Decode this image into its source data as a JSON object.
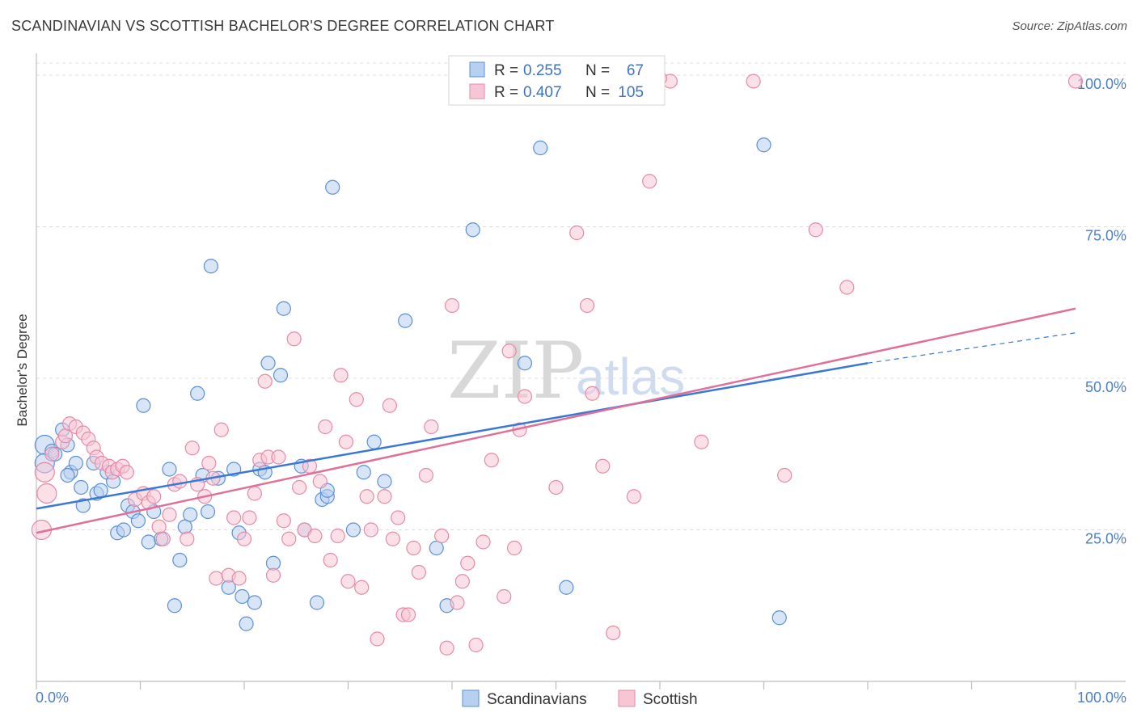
{
  "title": "SCANDINAVIAN VS SCOTTISH BACHELOR'S DEGREE CORRELATION CHART",
  "source": "Source: ZipAtlas.com",
  "watermark": {
    "zip": "ZIP",
    "atlas": "atlas"
  },
  "colors": {
    "blue_fill": "#b8d0f0",
    "blue_stroke": "#5a8fd6",
    "blue_line": "#3a78d4",
    "pink_fill": "#f7c6d5",
    "pink_stroke": "#e48aa6",
    "pink_line": "#e0709a"
  },
  "legend": {
    "r_label": "R =",
    "n_label": "N =",
    "rows": [
      {
        "r": "0.255",
        "n": "67"
      },
      {
        "r": "0.407",
        "n": "105"
      }
    ]
  },
  "chart_data": {
    "type": "scatter",
    "title": "SCANDINAVIAN VS SCOTTISH BACHELOR'S DEGREE CORRELATION CHART",
    "xlabel": "",
    "ylabel": "Bachelor's Degree",
    "xlim": [
      0,
      100
    ],
    "ylim": [
      0,
      102
    ],
    "x_tick_labels": [
      "0.0%",
      "100.0%"
    ],
    "y_ticks": [
      25,
      50,
      75,
      100
    ],
    "y_tick_labels": [
      "25.0%",
      "50.0%",
      "75.0%",
      "100.0%"
    ],
    "grid": true,
    "legend_position": "top-center",
    "series": [
      {
        "name": "Scandinavians",
        "trend": {
          "x0": 0,
          "y0": 28.5,
          "x1": 80,
          "y1": 52.5,
          "dashed_to_x": 100,
          "dashed_to_y": 57.5
        },
        "points": [
          [
            0.8,
            39
          ],
          [
            0.8,
            36
          ],
          [
            1.5,
            38
          ],
          [
            1.8,
            37.5
          ],
          [
            2.5,
            41.5
          ],
          [
            3,
            39
          ],
          [
            3.3,
            34.5
          ],
          [
            3.8,
            36
          ],
          [
            4.3,
            32
          ],
          [
            4.5,
            29
          ],
          [
            5.5,
            36
          ],
          [
            5.8,
            31
          ],
          [
            6.2,
            31.5
          ],
          [
            6.8,
            34.5
          ],
          [
            7.4,
            33
          ],
          [
            7.8,
            24.5
          ],
          [
            8.4,
            25
          ],
          [
            8.8,
            29
          ],
          [
            9.3,
            28
          ],
          [
            9.8,
            26.5
          ],
          [
            10.3,
            45.5
          ],
          [
            10.8,
            23
          ],
          [
            11.3,
            28
          ],
          [
            12,
            23.5
          ],
          [
            12.8,
            35
          ],
          [
            13.3,
            12.5
          ],
          [
            13.8,
            20
          ],
          [
            14.3,
            25.5
          ],
          [
            14.8,
            27.5
          ],
          [
            15.5,
            47.5
          ],
          [
            16,
            34
          ],
          [
            16.5,
            28
          ],
          [
            16.8,
            68.5
          ],
          [
            17.5,
            33.5
          ],
          [
            18.5,
            15.5
          ],
          [
            19,
            35
          ],
          [
            19.5,
            24.5
          ],
          [
            19.8,
            14
          ],
          [
            20.2,
            9.5
          ],
          [
            21,
            13
          ],
          [
            21.5,
            35
          ],
          [
            22,
            34.5
          ],
          [
            22.3,
            52.5
          ],
          [
            22.8,
            19.5
          ],
          [
            23.5,
            50.5
          ],
          [
            23.8,
            61.5
          ],
          [
            25.5,
            35.5
          ],
          [
            25.8,
            25
          ],
          [
            27,
            13
          ],
          [
            27.5,
            30
          ],
          [
            28,
            30.5
          ],
          [
            28,
            31.5
          ],
          [
            28.5,
            81.5
          ],
          [
            30.5,
            25
          ],
          [
            31.5,
            34.5
          ],
          [
            32.5,
            39.5
          ],
          [
            33.5,
            33
          ],
          [
            35.5,
            59.5
          ],
          [
            38.5,
            22
          ],
          [
            39.5,
            12.5
          ],
          [
            42,
            74.5
          ],
          [
            47,
            52.5
          ],
          [
            48.5,
            88
          ],
          [
            51,
            15.5
          ],
          [
            70,
            88.5
          ],
          [
            71.5,
            10.5
          ],
          [
            3,
            34
          ]
        ]
      },
      {
        "name": "Scottish",
        "trend": {
          "x0": 0,
          "y0": 24.5,
          "x1": 100,
          "y1": 61.5
        },
        "points": [
          [
            0.5,
            25
          ],
          [
            0.8,
            34.5
          ],
          [
            1,
            31
          ],
          [
            1.5,
            37.5
          ],
          [
            2.5,
            39.5
          ],
          [
            2.8,
            40.5
          ],
          [
            3.2,
            42.5
          ],
          [
            3.8,
            42
          ],
          [
            4.5,
            41
          ],
          [
            5,
            40
          ],
          [
            5.5,
            38.5
          ],
          [
            5.8,
            37
          ],
          [
            6.3,
            36
          ],
          [
            7,
            35.5
          ],
          [
            7.3,
            34.5
          ],
          [
            7.8,
            35
          ],
          [
            8.3,
            35.5
          ],
          [
            8.7,
            34.5
          ],
          [
            9.5,
            30
          ],
          [
            10.3,
            31
          ],
          [
            10.8,
            29.5
          ],
          [
            11.3,
            30.5
          ],
          [
            11.8,
            25.5
          ],
          [
            12.2,
            23.5
          ],
          [
            12.8,
            27.5
          ],
          [
            13.3,
            32.5
          ],
          [
            13.8,
            33
          ],
          [
            14.5,
            23.5
          ],
          [
            15,
            38.5
          ],
          [
            15.5,
            32.5
          ],
          [
            16.2,
            30.5
          ],
          [
            16.6,
            36
          ],
          [
            17,
            33.5
          ],
          [
            17.3,
            17
          ],
          [
            17.8,
            41.5
          ],
          [
            18.5,
            17.5
          ],
          [
            19,
            27
          ],
          [
            19.5,
            17
          ],
          [
            20,
            23.5
          ],
          [
            20.5,
            27
          ],
          [
            21,
            31
          ],
          [
            21.5,
            36.5
          ],
          [
            22,
            49.5
          ],
          [
            22.3,
            37
          ],
          [
            22.8,
            17.5
          ],
          [
            23.3,
            37
          ],
          [
            23.8,
            26.5
          ],
          [
            24.3,
            23.5
          ],
          [
            24.8,
            56.5
          ],
          [
            25.3,
            32
          ],
          [
            25.8,
            25
          ],
          [
            26.3,
            35.5
          ],
          [
            26.8,
            24
          ],
          [
            27.3,
            33
          ],
          [
            27.8,
            42
          ],
          [
            28.3,
            20
          ],
          [
            29,
            24
          ],
          [
            29.3,
            50.5
          ],
          [
            29.8,
            39.5
          ],
          [
            30,
            16.5
          ],
          [
            30.8,
            46.5
          ],
          [
            31.3,
            15.5
          ],
          [
            31.8,
            30.5
          ],
          [
            32.2,
            25
          ],
          [
            32.8,
            7
          ],
          [
            33.5,
            30.5
          ],
          [
            34,
            45.5
          ],
          [
            34.3,
            23.5
          ],
          [
            34.8,
            27
          ],
          [
            35.3,
            11
          ],
          [
            35.8,
            11
          ],
          [
            36.3,
            22
          ],
          [
            36.8,
            18
          ],
          [
            37.5,
            34
          ],
          [
            38,
            42
          ],
          [
            39,
            24
          ],
          [
            39.5,
            5.5
          ],
          [
            40,
            62
          ],
          [
            40.5,
            13
          ],
          [
            41,
            16.5
          ],
          [
            41.5,
            19.5
          ],
          [
            42.3,
            6
          ],
          [
            43,
            23
          ],
          [
            43.8,
            36.5
          ],
          [
            45,
            14
          ],
          [
            45.5,
            54.5
          ],
          [
            46,
            22
          ],
          [
            46.5,
            41.5
          ],
          [
            47,
            47
          ],
          [
            50,
            32
          ],
          [
            52,
            74
          ],
          [
            53,
            62
          ],
          [
            53.5,
            47.5
          ],
          [
            54.5,
            35.5
          ],
          [
            55.5,
            8
          ],
          [
            57.5,
            30.5
          ],
          [
            59,
            82.5
          ],
          [
            61,
            99
          ],
          [
            64,
            39.5
          ],
          [
            69,
            99
          ],
          [
            72,
            34
          ],
          [
            75,
            74.5
          ],
          [
            78,
            65
          ],
          [
            100,
            99
          ],
          [
            60,
            99.5
          ]
        ]
      }
    ]
  },
  "bottom_legend": {
    "items": [
      "Scandinavians",
      "Scottish"
    ]
  }
}
